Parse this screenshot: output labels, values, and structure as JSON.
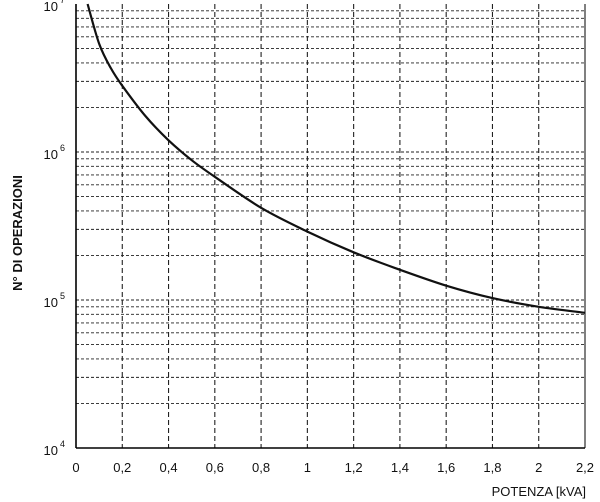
{
  "chart_data": {
    "type": "line",
    "xlabel": "POTENZA [kVA]",
    "ylabel": "N° DI OPERAZIONI",
    "xlim": [
      0,
      2.2
    ],
    "ylim": [
      10000,
      10000000
    ],
    "y_scale": "log",
    "grid": true,
    "x_ticks": [
      {
        "value": 0,
        "label": "0"
      },
      {
        "value": 0.2,
        "label": "0,2"
      },
      {
        "value": 0.4,
        "label": "0,4"
      },
      {
        "value": 0.6,
        "label": "0,6"
      },
      {
        "value": 0.8,
        "label": "0,8"
      },
      {
        "value": 1.0,
        "label": "1"
      },
      {
        "value": 1.2,
        "label": "1,2"
      },
      {
        "value": 1.4,
        "label": "1,4"
      },
      {
        "value": 1.6,
        "label": "1,6"
      },
      {
        "value": 1.8,
        "label": "1,8"
      },
      {
        "value": 2.0,
        "label": "2"
      },
      {
        "value": 2.2,
        "label": "2,2"
      }
    ],
    "y_ticks": [
      {
        "value": 10000,
        "base": "10",
        "exp": "4"
      },
      {
        "value": 100000,
        "base": "10",
        "exp": "5"
      },
      {
        "value": 1000000,
        "base": "10",
        "exp": "6"
      },
      {
        "value": 10000000,
        "base": "10",
        "exp": "7"
      }
    ],
    "series": [
      {
        "x": [
          0.05,
          0.1,
          0.15,
          0.2,
          0.3,
          0.4,
          0.5,
          0.6,
          0.8,
          1.0,
          1.2,
          1.4,
          1.6,
          1.8,
          2.0,
          2.2
        ],
        "y": [
          10000000,
          5400000,
          3700000,
          2800000,
          1750000,
          1200000,
          880000,
          680000,
          420000,
          290000,
          210000,
          160000,
          125000,
          103000,
          90000,
          82000
        ]
      }
    ]
  }
}
